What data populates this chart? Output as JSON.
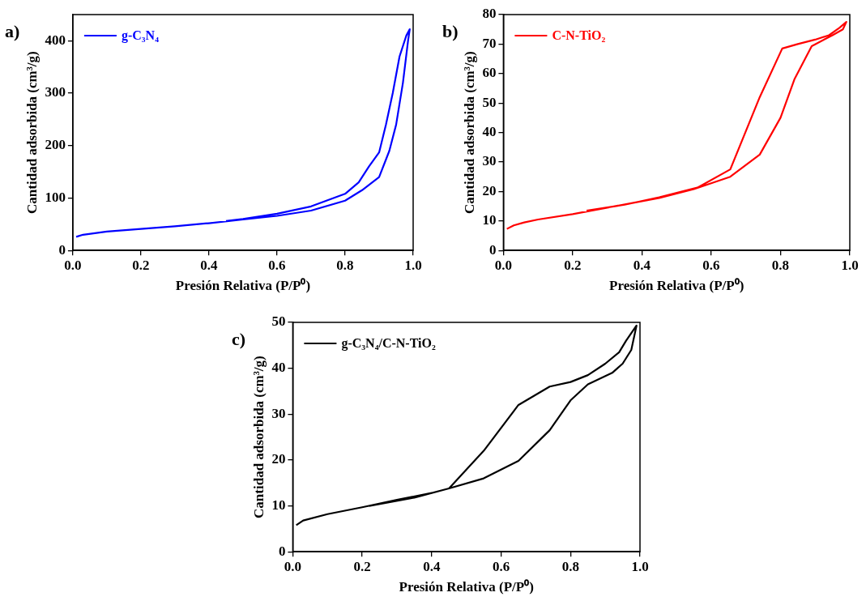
{
  "chart_data": [
    {
      "type": "line",
      "title": "a)",
      "xlabel": "Presión Relativa (P/P⁰)",
      "ylabel": "Cantidad adsorbida (cm³/g)",
      "legend": "top left",
      "grid": false,
      "marker": "none",
      "line_style": "solid",
      "xlim": [
        0,
        1
      ],
      "xticks": [
        {
          "value": 0,
          "label": "0.0"
        },
        {
          "value": 0.2,
          "label": "0.2"
        },
        {
          "value": 0.4,
          "label": "0.4"
        },
        {
          "value": 0.6,
          "label": "0.6"
        },
        {
          "value": 0.8,
          "label": "0.8"
        },
        {
          "value": 1,
          "label": "1.0"
        }
      ],
      "ylim": [
        0,
        450
      ],
      "yticks": [
        0,
        100,
        200,
        300,
        400
      ],
      "series": [
        {
          "name": "g-C₃N₄",
          "color": "#0000ff",
          "x": [
            0.01,
            0.03,
            0.1,
            0.2,
            0.3,
            0.4,
            0.5,
            0.6,
            0.7,
            0.8,
            0.85,
            0.9,
            0.93,
            0.95,
            0.97,
            0.985,
            0.99,
            0.98,
            0.96,
            0.94,
            0.92,
            0.9,
            0.87,
            0.84,
            0.8,
            0.7,
            0.6,
            0.5,
            0.45
          ],
          "values": [
            26,
            30,
            36,
            41,
            46,
            52,
            59,
            66,
            76,
            95,
            115,
            140,
            190,
            240,
            320,
            400,
            422,
            410,
            370,
            300,
            240,
            187,
            160,
            130,
            108,
            84,
            70,
            60,
            56
          ]
        }
      ]
    },
    {
      "type": "line",
      "title": "b)",
      "xlabel": "Presión Relativa (P/P⁰)",
      "ylabel": "Cantidad adsorbida (cm³/g)",
      "legend": "top left",
      "grid": false,
      "marker": "none",
      "line_style": "solid",
      "xlim": [
        0,
        1
      ],
      "xticks": [
        {
          "value": 0,
          "label": "0.0"
        },
        {
          "value": 0.2,
          "label": "0.2"
        },
        {
          "value": 0.4,
          "label": "0.4"
        },
        {
          "value": 0.6,
          "label": "0.6"
        },
        {
          "value": 0.8,
          "label": "0.8"
        },
        {
          "value": 1,
          "label": "1.0"
        }
      ],
      "ylim": [
        0,
        80
      ],
      "yticks": [
        0,
        10,
        20,
        30,
        40,
        50,
        60,
        70,
        80
      ],
      "series": [
        {
          "name": "C-N-TiO₂",
          "color": "#ff0000",
          "x": [
            0.01,
            0.03,
            0.06,
            0.1,
            0.2,
            0.3,
            0.45,
            0.55,
            0.655,
            0.74,
            0.8,
            0.84,
            0.89,
            0.95,
            0.98,
            0.99,
            0.97,
            0.94,
            0.9,
            0.85,
            0.805,
            0.74,
            0.655,
            0.56,
            0.45,
            0.35,
            0.24
          ],
          "values": [
            7.3,
            8.5,
            9.5,
            10.5,
            12.3,
            14.5,
            17.8,
            20.8,
            25,
            32.5,
            45,
            58,
            69.3,
            73,
            75,
            77.5,
            75.5,
            73,
            71.5,
            70,
            68.5,
            52,
            27.5,
            21.3,
            18,
            15.5,
            13.5
          ]
        }
      ]
    },
    {
      "type": "line",
      "title": "c)",
      "xlabel": "Presión Relativa (P/P⁰)",
      "ylabel": "Cantidad adsorbida (cm³/g)",
      "legend": "top left",
      "grid": false,
      "marker": "none",
      "line_style": "solid",
      "xlim": [
        0,
        1
      ],
      "xticks": [
        {
          "value": 0,
          "label": "0.0"
        },
        {
          "value": 0.2,
          "label": "0.2"
        },
        {
          "value": 0.4,
          "label": "0.4"
        },
        {
          "value": 0.6,
          "label": "0.6"
        },
        {
          "value": 0.8,
          "label": "0.8"
        },
        {
          "value": 1,
          "label": "1.0"
        }
      ],
      "ylim": [
        0,
        50
      ],
      "yticks": [
        0,
        10,
        20,
        30,
        40,
        50
      ],
      "series": [
        {
          "name": "g-C₃N₄/C-N-TiO₂",
          "color": "#000000",
          "x": [
            0.01,
            0.03,
            0.1,
            0.2,
            0.3,
            0.4,
            0.45,
            0.55,
            0.65,
            0.74,
            0.8,
            0.85,
            0.92,
            0.95,
            0.975,
            0.99,
            0.96,
            0.94,
            0.9,
            0.85,
            0.8,
            0.74,
            0.65,
            0.55,
            0.45,
            0.35,
            0.22
          ],
          "values": [
            5.8,
            6.8,
            8.2,
            9.7,
            11.3,
            12.8,
            13.8,
            16,
            19.8,
            26.5,
            33,
            36.5,
            39,
            41,
            44,
            49.3,
            46,
            43.5,
            41,
            38.5,
            37,
            36,
            32,
            22,
            13.8,
            11.8,
            10
          ]
        }
      ]
    }
  ]
}
